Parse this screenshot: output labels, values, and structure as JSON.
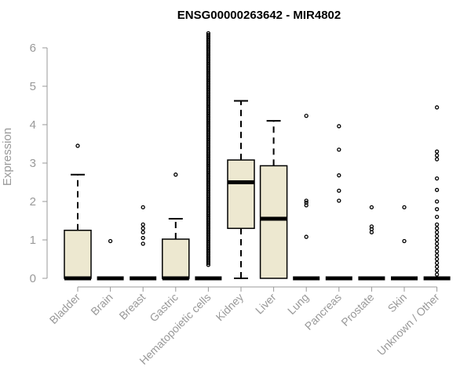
{
  "chart_data": {
    "type": "boxplot",
    "title": "ENSG00000263642 - MIR4802",
    "ylabel": "Expression",
    "xlabel": "",
    "ylim": [
      0,
      6.5
    ],
    "yticks": [
      0,
      1,
      2,
      3,
      4,
      5,
      6
    ],
    "grid": false,
    "legend": "none",
    "box_fill": "#ede8d0",
    "box_stroke": "#000000",
    "categories": [
      "Bladder",
      "Brain",
      "Breast",
      "Gastric",
      "Hematopoietic cells",
      "Kidney",
      "Liver",
      "Lung",
      "Pancreas",
      "Prostate",
      "Skin",
      "Unknown / Other"
    ],
    "boxes": [
      {
        "category": "Bladder",
        "q1": 0,
        "median": 0,
        "q3": 1.25,
        "whisker_low": 0,
        "whisker_high": 2.7,
        "outliers": [
          3.45
        ]
      },
      {
        "category": "Brain",
        "q1": 0,
        "median": 0,
        "q3": 0,
        "whisker_low": 0,
        "whisker_high": 0,
        "outliers": [
          0.97
        ]
      },
      {
        "category": "Breast",
        "q1": 0,
        "median": 0,
        "q3": 0,
        "whisker_low": 0,
        "whisker_high": 0,
        "outliers": [
          0.9,
          1.05,
          1.2,
          1.3,
          1.4,
          1.85
        ]
      },
      {
        "category": "Gastric",
        "q1": 0,
        "median": 0,
        "q3": 1.02,
        "whisker_low": 0,
        "whisker_high": 1.55,
        "outliers": [
          2.7
        ]
      },
      {
        "category": "Hematopoietic cells",
        "q1": 0,
        "median": 0,
        "q3": 0,
        "whisker_low": 0,
        "whisker_high": 0,
        "outliers": "dense",
        "outliers_dense_range": [
          0.35,
          6.4
        ]
      },
      {
        "category": "Kidney",
        "q1": 1.3,
        "median": 2.5,
        "q3": 3.08,
        "whisker_low": 0,
        "whisker_high": 4.62,
        "outliers": []
      },
      {
        "category": "Liver",
        "q1": 0,
        "median": 1.55,
        "q3": 2.93,
        "whisker_low": 0,
        "whisker_high": 4.1,
        "outliers": []
      },
      {
        "category": "Lung",
        "q1": 0,
        "median": 0,
        "q3": 0,
        "whisker_low": 0,
        "whisker_high": 0,
        "outliers": [
          1.08,
          1.9,
          1.97,
          2.02,
          4.23
        ]
      },
      {
        "category": "Pancreas",
        "q1": 0,
        "median": 0,
        "q3": 0,
        "whisker_low": 0,
        "whisker_high": 0,
        "outliers": [
          2.02,
          2.28,
          2.68,
          3.35,
          3.96
        ]
      },
      {
        "category": "Prostate",
        "q1": 0,
        "median": 0,
        "q3": 0,
        "whisker_low": 0,
        "whisker_high": 0,
        "outliers": [
          1.2,
          1.28,
          1.35,
          1.85
        ]
      },
      {
        "category": "Skin",
        "q1": 0,
        "median": 0,
        "q3": 0,
        "whisker_low": 0,
        "whisker_high": 0,
        "outliers": [
          0.97,
          1.85
        ]
      },
      {
        "category": "Unknown / Other",
        "q1": 0,
        "median": 0,
        "q3": 0,
        "whisker_low": 0,
        "whisker_high": 0,
        "outliers": [
          0.1,
          0.2,
          0.3,
          0.4,
          0.5,
          0.6,
          0.7,
          0.8,
          0.9,
          1.0,
          1.1,
          1.2,
          1.3,
          1.4,
          1.6,
          1.8,
          2.0,
          2.3,
          2.6,
          3.1,
          3.2,
          3.3,
          4.45
        ]
      }
    ]
  }
}
